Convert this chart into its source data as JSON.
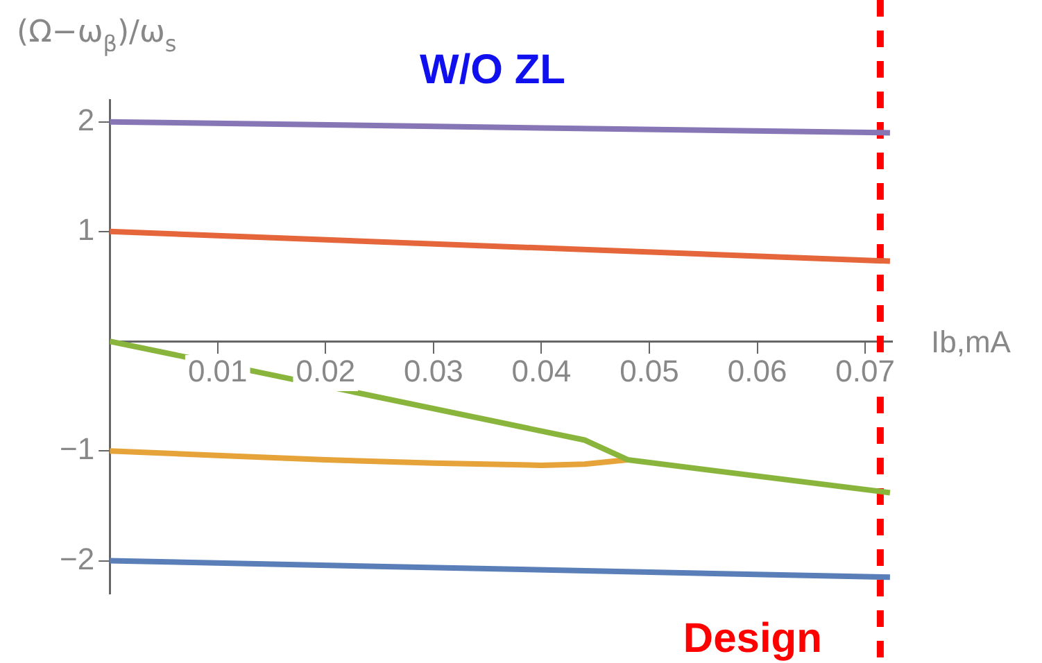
{
  "chart_data": {
    "type": "line",
    "title": "W/O ZL",
    "xlabel": "Ib,mA",
    "ylabel": "(Ω−ω$_{β}$)/ω$_{s}$",
    "xlim": [
      0,
      0.0725
    ],
    "ylim": [
      -2.3,
      2.2
    ],
    "xticks": [
      0.01,
      0.02,
      0.03,
      0.04,
      0.05,
      0.06,
      0.07
    ],
    "yticks": [
      -2,
      -1,
      1,
      2
    ],
    "grid": false,
    "legend": false,
    "marker": "none",
    "line_style": "solid",
    "series": [
      {
        "color": "#8676b6",
        "x": [
          0,
          0.0723
        ],
        "values": [
          2,
          1.9
        ]
      },
      {
        "color": "#e5663a",
        "x": [
          0,
          0.0723
        ],
        "values": [
          1,
          0.73
        ]
      },
      {
        "color": "#8ab53c",
        "x": [
          0,
          0.044,
          0.048,
          0.0723
        ],
        "values": [
          0,
          -0.9,
          -1.08,
          -1.38
        ]
      },
      {
        "color": "#e5a33a",
        "x": [
          0,
          0.01,
          0.02,
          0.03,
          0.04,
          0.044,
          0.048
        ],
        "values": [
          -1,
          -1.04,
          -1.08,
          -1.11,
          -1.13,
          -1.12,
          -1.08
        ]
      },
      {
        "color": "#5a7fb8",
        "x": [
          0,
          0.0723
        ],
        "values": [
          -2,
          -2.15
        ]
      }
    ],
    "ref_lines": [
      {
        "axis": "x",
        "value": 0.0714,
        "label": "Design",
        "color": "#ff0000",
        "line_style": "dashed"
      }
    ]
  }
}
